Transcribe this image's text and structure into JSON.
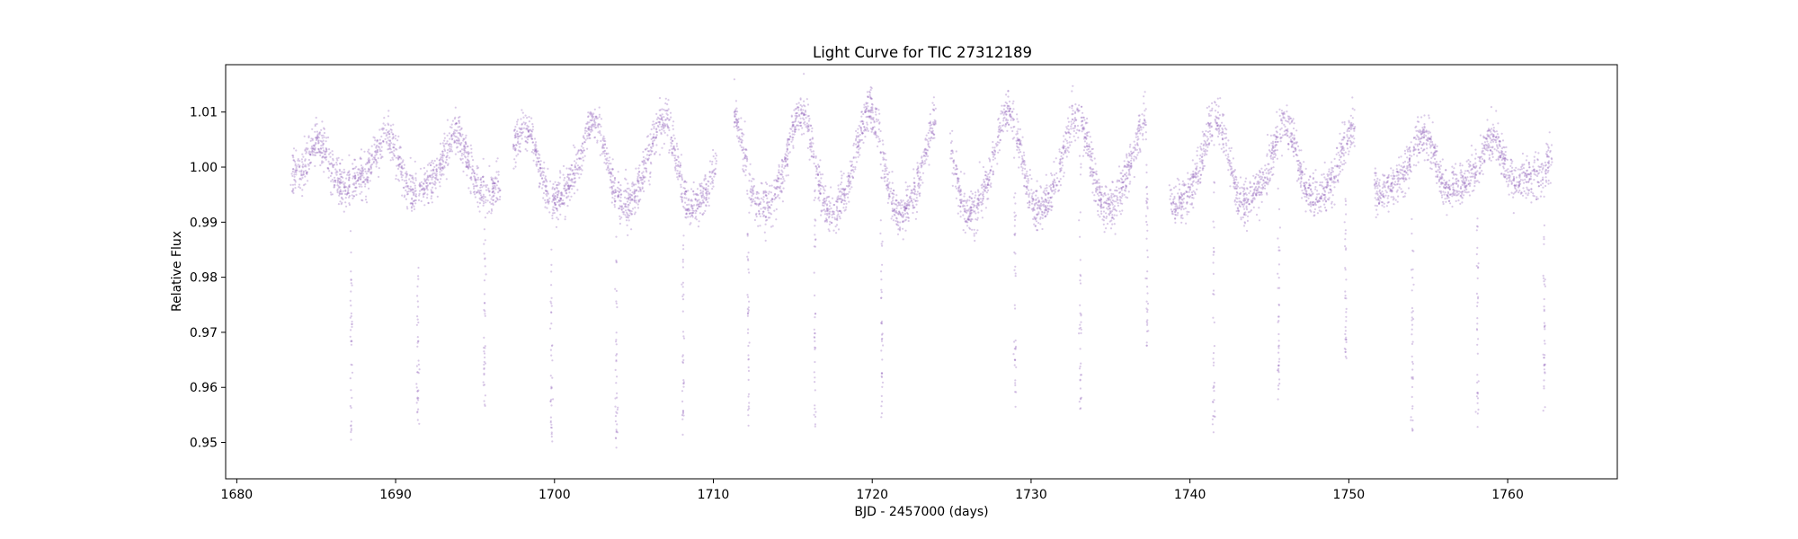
{
  "chart_data": {
    "type": "scatter",
    "title": "Light Curve for TIC 27312189",
    "xlabel": "BJD - 2457000 (days)",
    "ylabel": "Relative Flux",
    "xlim": [
      1679.3,
      1766.9
    ],
    "ylim": [
      0.9434,
      1.0186
    ],
    "xticks": [
      1680,
      1690,
      1700,
      1710,
      1720,
      1730,
      1740,
      1750,
      1760
    ],
    "yticks": [
      0.95,
      0.96,
      0.97,
      0.98,
      0.99,
      1.0,
      1.01
    ],
    "ytick_labels": [
      "0.95",
      "0.96",
      "0.97",
      "0.98",
      "0.99",
      "1.00",
      "1.01"
    ],
    "grid": false,
    "legend": "none",
    "series": [
      {
        "color": "#9467bd",
        "marker_alpha": 0.35,
        "observed_segments": [
          [
            1683.4,
            1696.6
          ],
          [
            1697.4,
            1710.2
          ],
          [
            1711.3,
            1724.0
          ],
          [
            1724.9,
            1737.3
          ],
          [
            1738.7,
            1750.4
          ],
          [
            1751.6,
            1762.8
          ]
        ],
        "variability": {
          "baseline": 1.0,
          "amplitude_min": 0.003,
          "amplitude_max": 0.009,
          "period_days": 4.35
        },
        "transits": [
          {
            "x": 1687.2,
            "depth_flux": 0.951
          },
          {
            "x": 1691.4,
            "depth_flux": 0.953
          },
          {
            "x": 1695.6,
            "depth_flux": 0.955
          },
          {
            "x": 1699.8,
            "depth_flux": 0.95
          },
          {
            "x": 1703.9,
            "depth_flux": 0.95
          },
          {
            "x": 1708.1,
            "depth_flux": 0.952
          },
          {
            "x": 1712.2,
            "depth_flux": 0.955
          },
          {
            "x": 1716.4,
            "depth_flux": 0.954
          },
          {
            "x": 1720.6,
            "depth_flux": 0.955
          },
          {
            "x": 1729.0,
            "depth_flux": 0.958
          },
          {
            "x": 1733.1,
            "depth_flux": 0.957
          },
          {
            "x": 1737.3,
            "depth_flux": 0.966
          },
          {
            "x": 1741.5,
            "depth_flux": 0.952
          },
          {
            "x": 1745.6,
            "depth_flux": 0.957
          },
          {
            "x": 1749.8,
            "depth_flux": 0.961
          },
          {
            "x": 1754.0,
            "depth_flux": 0.951
          },
          {
            "x": 1758.1,
            "depth_flux": 0.954
          },
          {
            "x": 1762.3,
            "depth_flux": 0.957
          }
        ]
      }
    ]
  }
}
